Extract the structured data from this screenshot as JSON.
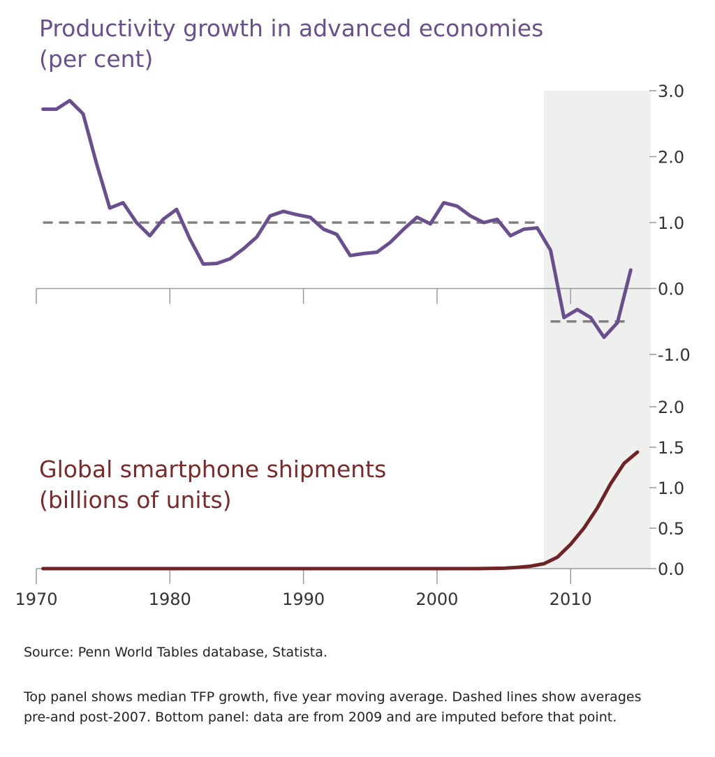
{
  "colors": {
    "top_line": "#6a4f8e",
    "bottom_line": "#6e2327",
    "dashed": "#808080",
    "shade": "#eef0ee",
    "axis": "#999999"
  },
  "chart_data": [
    {
      "type": "line",
      "title": "Productivity growth in advanced economies",
      "subtitle": "(per cent)",
      "ylim": [
        -1.0,
        3.0
      ],
      "yticks": [
        "3.0",
        "2.0",
        "1.0",
        "0.0",
        "-1.0"
      ],
      "ytick_values": [
        3.0,
        2.0,
        1.0,
        0.0,
        -1.0
      ],
      "shaded_region": [
        2008,
        2016
      ],
      "series": [
        {
          "name": "Median TFP growth, five year moving average",
          "x": [
            1970.5,
            1971.5,
            1972.5,
            1973.5,
            1974.5,
            1975.5,
            1976.5,
            1977.5,
            1978.5,
            1979.5,
            1980.5,
            1981.5,
            1982.5,
            1983.5,
            1984.5,
            1985.5,
            1986.5,
            1987.5,
            1988.5,
            1989.5,
            1990.5,
            1991.5,
            1992.5,
            1993.5,
            1994.5,
            1995.5,
            1996.5,
            1997.5,
            1998.5,
            1999.5,
            2000.5,
            2001.5,
            2002.5,
            2003.5,
            2004.5,
            2005.5,
            2006.5,
            2007.5,
            2008.5,
            2009.5,
            2010.5,
            2011.5,
            2012.5,
            2013.5,
            2014.5
          ],
          "values": [
            2.72,
            2.72,
            2.85,
            2.65,
            1.9,
            1.22,
            1.3,
            1.0,
            0.8,
            1.05,
            1.2,
            0.75,
            0.37,
            0.38,
            0.45,
            0.6,
            0.78,
            1.1,
            1.17,
            1.12,
            1.08,
            0.9,
            0.82,
            0.5,
            0.53,
            0.55,
            0.7,
            0.9,
            1.08,
            0.98,
            1.3,
            1.25,
            1.1,
            1.0,
            1.05,
            0.8,
            0.9,
            0.92,
            0.58,
            -0.44,
            -0.32,
            -0.44,
            -0.74,
            -0.52,
            0.28
          ]
        }
      ],
      "dashed_averages": [
        {
          "label": "pre-2007",
          "x_range": [
            1970.5,
            2007.5
          ],
          "value": 1.0
        },
        {
          "label": "post-2007",
          "x_range": [
            2008.5,
            2014.5
          ],
          "value": -0.5
        }
      ]
    },
    {
      "type": "line",
      "title": "Global smartphone shipments",
      "subtitle": "(billions of units)",
      "ylim": [
        0.0,
        2.0
      ],
      "yticks": [
        "2.0",
        "1.5",
        "1.0",
        "0.5",
        "0.0"
      ],
      "ytick_values": [
        2.0,
        1.5,
        1.0,
        0.5,
        0.0
      ],
      "xlim": [
        1970,
        2016
      ],
      "xticks": [
        "1970",
        "1980",
        "1990",
        "2000",
        "2010"
      ],
      "xtick_values": [
        1970,
        1980,
        1990,
        2000,
        2010
      ],
      "series": [
        {
          "name": "Global smartphone shipments",
          "x": [
            1970.5,
            2000,
            2003,
            2005,
            2006,
            2007,
            2008,
            2009,
            2010,
            2011,
            2012,
            2013,
            2014,
            2015
          ],
          "values": [
            0.0,
            0.0,
            0.0,
            0.005,
            0.015,
            0.03,
            0.06,
            0.14,
            0.3,
            0.5,
            0.75,
            1.05,
            1.3,
            1.44
          ]
        }
      ]
    }
  ],
  "notes": {
    "source": "Source:  Penn World Tables database, Statista.",
    "line1": "Top panel shows median TFP growth, five year moving average.  Dashed lines show averages",
    "line2": "pre-and post-2007.  Bottom panel:  data are from 2009 and are imputed before that point."
  }
}
